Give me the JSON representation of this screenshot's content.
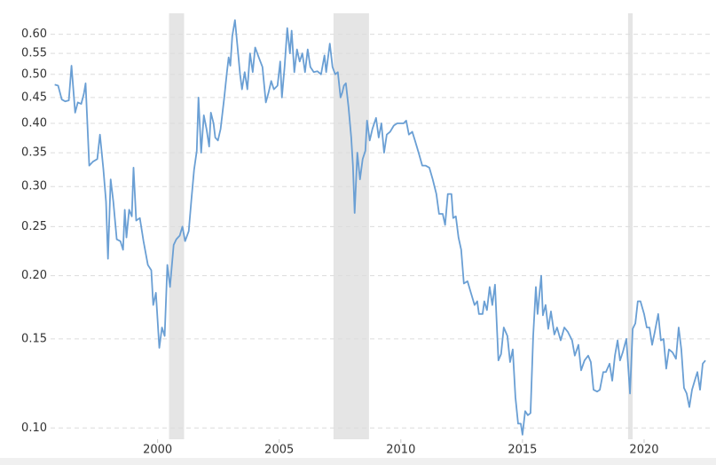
{
  "chart_data": {
    "type": "line",
    "log_y": true,
    "grid": true,
    "color": "#6a9fd4",
    "shade_color": "#e5e5e5",
    "xlim": [
      1995.6,
      2022.7
    ],
    "ylim": [
      0.095,
      0.66
    ],
    "xticks": [
      2000,
      2005,
      2010,
      2015,
      2020
    ],
    "yticks": [
      {
        "value": 0.6,
        "label": "0.60"
      },
      0.55,
      {
        "value": 0.5,
        "label": "0.50"
      },
      0.45,
      {
        "value": 0.4,
        "label": "0.40"
      },
      0.35,
      {
        "value": 0.3,
        "label": "0.30"
      },
      0.25,
      {
        "value": 0.2,
        "label": "0.20"
      },
      0.15,
      {
        "value": 0.1,
        "label": "0.10"
      }
    ],
    "shaded_ranges": [
      [
        2000.47,
        2001.09
      ],
      [
        2007.23,
        2008.69
      ],
      [
        2019.34,
        2019.53
      ]
    ],
    "x": [
      1995.77,
      1995.91,
      1996.06,
      1996.2,
      1996.35,
      1996.46,
      1996.61,
      1996.72,
      1996.86,
      1996.97,
      1997.04,
      1997.19,
      1997.34,
      1997.52,
      1997.63,
      1997.77,
      1997.88,
      1997.96,
      1998.07,
      1998.18,
      1998.32,
      1998.47,
      1998.58,
      1998.65,
      1998.72,
      1998.83,
      1998.94,
      1999.01,
      1999.12,
      1999.27,
      1999.42,
      1999.6,
      1999.74,
      1999.82,
      1999.93,
      2000.07,
      2000.18,
      2000.29,
      2000.4,
      2000.51,
      2000.66,
      2000.77,
      2000.91,
      2001.02,
      2001.13,
      2001.28,
      2001.39,
      2001.5,
      2001.61,
      2001.68,
      2001.79,
      2001.9,
      2002.01,
      2002.12,
      2002.19,
      2002.3,
      2002.37,
      2002.48,
      2002.59,
      2002.74,
      2002.85,
      2002.92,
      2002.99,
      2003.07,
      2003.18,
      2003.28,
      2003.39,
      2003.47,
      2003.58,
      2003.69,
      2003.8,
      2003.91,
      2004.01,
      2004.16,
      2004.31,
      2004.45,
      2004.56,
      2004.67,
      2004.78,
      2004.93,
      2005.04,
      2005.11,
      2005.22,
      2005.33,
      2005.44,
      2005.51,
      2005.62,
      2005.73,
      2005.84,
      2005.95,
      2006.06,
      2006.17,
      2006.28,
      2006.42,
      2006.57,
      2006.72,
      2006.86,
      2006.93,
      2007.08,
      2007.19,
      2007.3,
      2007.41,
      2007.52,
      2007.59,
      2007.66,
      2007.74,
      2007.85,
      2007.96,
      2008.03,
      2008.1,
      2008.21,
      2008.32,
      2008.43,
      2008.54,
      2008.61,
      2008.72,
      2008.83,
      2008.98,
      2009.09,
      2009.2,
      2009.31,
      2009.42,
      2009.56,
      2009.71,
      2009.85,
      2010.0,
      2010.11,
      2010.22,
      2010.33,
      2010.47,
      2010.58,
      2010.73,
      2010.88,
      2011.02,
      2011.17,
      2011.31,
      2011.46,
      2011.57,
      2011.72,
      2011.82,
      2011.93,
      2012.08,
      2012.15,
      2012.26,
      2012.37,
      2012.48,
      2012.59,
      2012.74,
      2012.88,
      2013.03,
      2013.14,
      2013.21,
      2013.36,
      2013.43,
      2013.54,
      2013.65,
      2013.76,
      2013.87,
      2014.01,
      2014.12,
      2014.23,
      2014.38,
      2014.49,
      2014.6,
      2014.71,
      2014.82,
      2014.93,
      2015.0,
      2015.11,
      2015.22,
      2015.33,
      2015.44,
      2015.55,
      2015.62,
      2015.77,
      2015.84,
      2015.95,
      2016.06,
      2016.17,
      2016.31,
      2016.42,
      2016.57,
      2016.72,
      2016.86,
      2017.04,
      2017.15,
      2017.3,
      2017.41,
      2017.55,
      2017.7,
      2017.81,
      2017.92,
      2018.07,
      2018.18,
      2018.32,
      2018.43,
      2018.58,
      2018.69,
      2018.8,
      2018.91,
      2019.01,
      2019.12,
      2019.27,
      2019.42,
      2019.53,
      2019.64,
      2019.74,
      2019.85,
      2020.0,
      2020.11,
      2020.22,
      2020.33,
      2020.44,
      2020.58,
      2020.69,
      2020.8,
      2020.91,
      2021.02,
      2021.17,
      2021.31,
      2021.42,
      2021.53,
      2021.64,
      2021.75,
      2021.86,
      2021.97,
      2022.08,
      2022.19,
      2022.3,
      2022.41,
      2022.52
    ],
    "values": [
      0.477,
      0.475,
      0.446,
      0.442,
      0.444,
      0.52,
      0.42,
      0.44,
      0.437,
      0.458,
      0.48,
      0.33,
      0.336,
      0.34,
      0.38,
      0.325,
      0.28,
      0.216,
      0.31,
      0.28,
      0.236,
      0.234,
      0.225,
      0.27,
      0.238,
      0.27,
      0.262,
      0.327,
      0.257,
      0.26,
      0.234,
      0.21,
      0.205,
      0.175,
      0.185,
      0.144,
      0.158,
      0.152,
      0.21,
      0.19,
      0.23,
      0.236,
      0.24,
      0.25,
      0.234,
      0.245,
      0.283,
      0.324,
      0.353,
      0.45,
      0.35,
      0.415,
      0.39,
      0.36,
      0.42,
      0.4,
      0.375,
      0.37,
      0.39,
      0.45,
      0.505,
      0.54,
      0.52,
      0.595,
      0.64,
      0.57,
      0.5,
      0.467,
      0.505,
      0.467,
      0.55,
      0.505,
      0.565,
      0.54,
      0.517,
      0.44,
      0.46,
      0.485,
      0.467,
      0.475,
      0.53,
      0.45,
      0.517,
      0.617,
      0.55,
      0.61,
      0.505,
      0.56,
      0.53,
      0.55,
      0.505,
      0.56,
      0.517,
      0.505,
      0.507,
      0.5,
      0.545,
      0.505,
      0.575,
      0.517,
      0.5,
      0.505,
      0.45,
      0.46,
      0.475,
      0.48,
      0.43,
      0.375,
      0.33,
      0.266,
      0.35,
      0.31,
      0.34,
      0.353,
      0.405,
      0.37,
      0.39,
      0.41,
      0.375,
      0.4,
      0.35,
      0.38,
      0.385,
      0.396,
      0.4,
      0.4,
      0.4,
      0.405,
      0.38,
      0.385,
      0.37,
      0.35,
      0.33,
      0.33,
      0.327,
      0.31,
      0.29,
      0.265,
      0.265,
      0.252,
      0.29,
      0.29,
      0.26,
      0.262,
      0.238,
      0.225,
      0.193,
      0.195,
      0.185,
      0.175,
      0.178,
      0.168,
      0.168,
      0.178,
      0.171,
      0.19,
      0.175,
      0.192,
      0.136,
      0.14,
      0.158,
      0.152,
      0.135,
      0.143,
      0.115,
      0.102,
      0.102,
      0.097,
      0.108,
      0.106,
      0.107,
      0.152,
      0.19,
      0.168,
      0.2,
      0.167,
      0.175,
      0.157,
      0.17,
      0.153,
      0.158,
      0.149,
      0.158,
      0.155,
      0.149,
      0.139,
      0.146,
      0.13,
      0.136,
      0.139,
      0.135,
      0.119,
      0.118,
      0.119,
      0.129,
      0.129,
      0.134,
      0.124,
      0.139,
      0.149,
      0.136,
      0.141,
      0.15,
      0.117,
      0.157,
      0.161,
      0.178,
      0.178,
      0.168,
      0.158,
      0.158,
      0.146,
      0.155,
      0.168,
      0.149,
      0.15,
      0.131,
      0.143,
      0.141,
      0.137,
      0.158,
      0.143,
      0.12,
      0.117,
      0.11,
      0.119,
      0.124,
      0.129,
      0.119,
      0.134,
      0.136
    ]
  }
}
